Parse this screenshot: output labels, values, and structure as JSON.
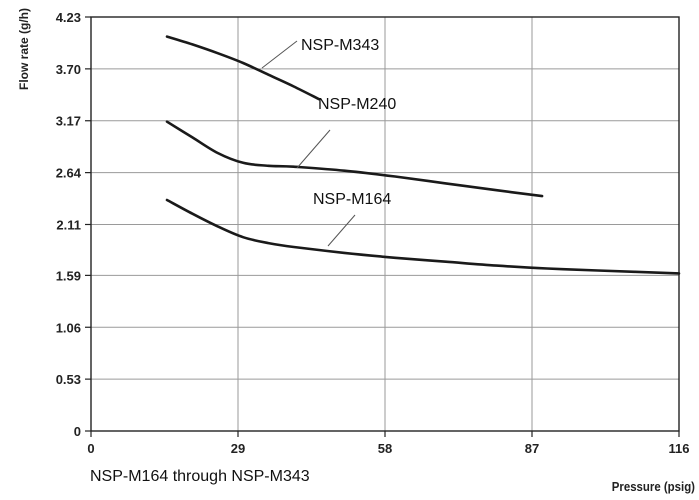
{
  "chart_data": {
    "type": "line",
    "title": "",
    "xlabel": "Pressure (psig)",
    "ylabel": "Flow rate (g/h)",
    "xlim": [
      0,
      116
    ],
    "ylim": [
      0,
      4.23
    ],
    "x_ticks": [
      "0",
      "29",
      "58",
      "87",
      "116"
    ],
    "x_tick_values": [
      0,
      29,
      58,
      87,
      116
    ],
    "y_ticks": [
      "0",
      "0.53",
      "1.06",
      "1.59",
      "2.11",
      "2.64",
      "3.17",
      "3.70",
      "4.23"
    ],
    "y_tick_values": [
      0,
      0.53,
      1.06,
      1.59,
      2.11,
      2.64,
      3.17,
      3.7,
      4.23
    ],
    "grid": true,
    "series": [
      {
        "name": "NSP-M343",
        "x": [
          15,
          20,
          25,
          30,
          35,
          40,
          45
        ],
        "y": [
          4.03,
          3.95,
          3.86,
          3.76,
          3.64,
          3.52,
          3.39
        ]
      },
      {
        "name": "NSP-M240",
        "x": [
          15,
          20,
          25,
          30,
          35,
          40,
          50,
          60,
          70,
          80,
          89
        ],
        "y": [
          3.16,
          3.0,
          2.84,
          2.74,
          2.71,
          2.7,
          2.66,
          2.6,
          2.53,
          2.46,
          2.4
        ]
      },
      {
        "name": "NSP-M164",
        "x": [
          15,
          20,
          25,
          30,
          35,
          40,
          50,
          60,
          70,
          80,
          90,
          100,
          116
        ],
        "y": [
          2.36,
          2.22,
          2.09,
          1.98,
          1.92,
          1.88,
          1.82,
          1.77,
          1.73,
          1.69,
          1.66,
          1.64,
          1.61
        ]
      }
    ],
    "annotations": [
      {
        "text": "NSP-M343",
        "series": 0
      },
      {
        "text": "NSP-M240",
        "series": 1
      },
      {
        "text": "NSP-M164",
        "series": 2
      }
    ],
    "colors": {
      "line": "#1a1a1a",
      "grid": "#9a9a9a",
      "frame": "#222222"
    }
  },
  "caption": "NSP-M164 through NSP-M343"
}
